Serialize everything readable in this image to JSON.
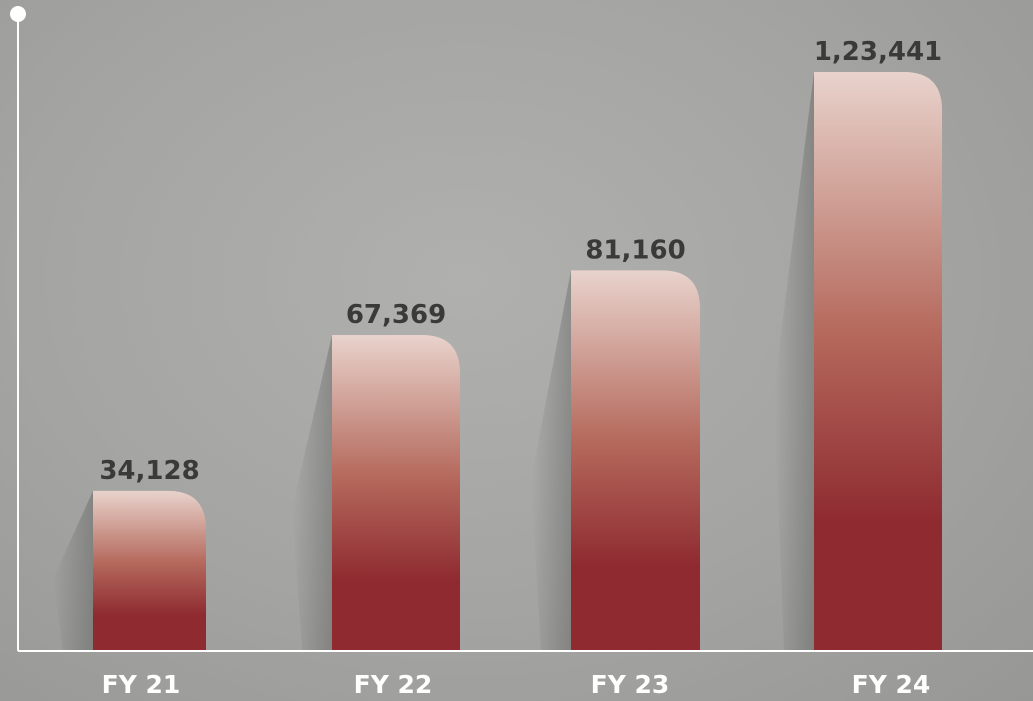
{
  "chart_data": {
    "type": "bar",
    "categories": [
      "FY 21",
      "FY 22",
      "FY 23",
      "FY 24"
    ],
    "values": [
      34128,
      67369,
      81160,
      123441
    ],
    "value_labels": [
      "34,128",
      "67,369",
      "81,160",
      "1,23,441"
    ],
    "title": "",
    "xlabel": "",
    "ylabel": "",
    "ylim": [
      0,
      123441
    ],
    "grid": false,
    "legend": "none"
  },
  "colors": {
    "bar_top": "#e8d3cc",
    "bar_mid": "#b5695c",
    "bar_bottom": "#8e2a30",
    "axis": "#ffffff",
    "value_text": "#3a3a3a",
    "tick_text": "#ffffff"
  }
}
